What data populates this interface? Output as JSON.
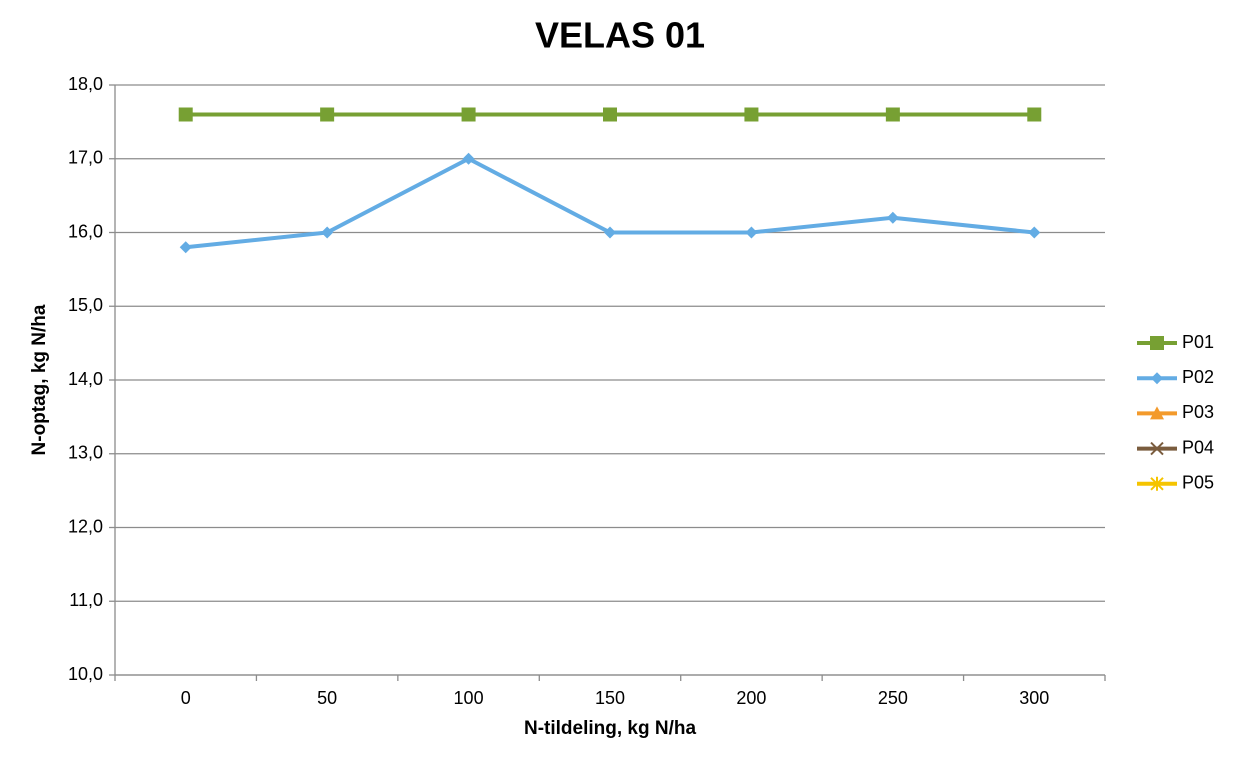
{
  "chart_data": {
    "type": "line",
    "title": "VELAS 01",
    "x_label": "N-tildeling, kg N/ha",
    "y_label": "N-optag, kg N/ha",
    "categories": [
      "0",
      "50",
      "100",
      "150",
      "200",
      "250",
      "300"
    ],
    "series": [
      {
        "name": "P01",
        "color": "#77a033",
        "marker": "square",
        "values": [
          17.6,
          17.6,
          17.6,
          17.6,
          17.6,
          17.6,
          17.6
        ]
      },
      {
        "name": "P02",
        "color": "#63ace4",
        "marker": "diamond",
        "values": [
          15.8,
          16.0,
          17.0,
          16.0,
          16.0,
          16.2,
          16.0
        ]
      },
      {
        "name": "P03",
        "color": "#f39a2b",
        "marker": "triangle",
        "values": [
          null,
          null,
          null,
          null,
          null,
          null,
          null
        ]
      },
      {
        "name": "P04",
        "color": "#7a5c3e",
        "marker": "x",
        "values": [
          null,
          null,
          null,
          null,
          null,
          null,
          null
        ]
      },
      {
        "name": "P05",
        "color": "#f5c400",
        "marker": "star",
        "values": [
          null,
          null,
          null,
          null,
          null,
          null,
          null
        ]
      }
    ],
    "ylim": [
      10,
      18
    ],
    "yticks": [
      {
        "value": 10,
        "label": "10,0"
      },
      {
        "value": 11,
        "label": "11,0"
      },
      {
        "value": 12,
        "label": "12,0"
      },
      {
        "value": 13,
        "label": "13,0"
      },
      {
        "value": 14,
        "label": "14,0"
      },
      {
        "value": 15,
        "label": "15,0"
      },
      {
        "value": 16,
        "label": "16,0"
      },
      {
        "value": 17,
        "label": "17,0"
      },
      {
        "value": 18,
        "label": "18,0"
      }
    ],
    "grid": true,
    "legend": "right"
  }
}
